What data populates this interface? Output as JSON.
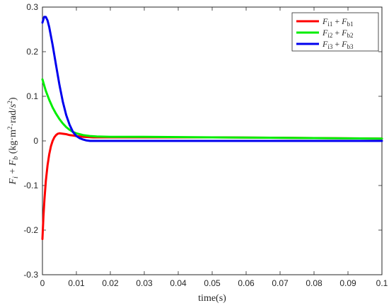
{
  "chart_data": {
    "type": "line",
    "xlabel": "time(s)",
    "ylabel": "F_i + F_b (kg·m²·rad/s²)",
    "xlim": [
      0,
      0.1
    ],
    "ylim": [
      -0.3,
      0.3
    ],
    "xticks": [
      0,
      0.01,
      0.02,
      0.03,
      0.04,
      0.05,
      0.06,
      0.07,
      0.08,
      0.09,
      0.1
    ],
    "xtick_labels": [
      "0",
      "0.01",
      "0.02",
      "0.03",
      "0.04",
      "0.05",
      "0.06",
      "0.07",
      "0.08",
      "0.09",
      "0.1"
    ],
    "yticks": [
      -0.3,
      -0.2,
      -0.1,
      0,
      0.1,
      0.2,
      0.3
    ],
    "ytick_labels": [
      "-0.3",
      "-0.2",
      "-0.1",
      "0",
      "0.1",
      "0.2",
      "0.3"
    ],
    "grid": false,
    "legend_position": "top-right",
    "series": [
      {
        "name": "Fi1 + Fb1",
        "color": "#ff0000",
        "x": [
          0,
          0.0003,
          0.0006,
          0.001,
          0.0015,
          0.002,
          0.0025,
          0.003,
          0.0035,
          0.004,
          0.0045,
          0.005,
          0.006,
          0.007,
          0.008,
          0.009,
          0.01,
          0.012,
          0.015,
          0.02,
          0.03,
          0.05,
          0.07,
          0.1
        ],
        "y": [
          -0.22,
          -0.17,
          -0.13,
          -0.09,
          -0.055,
          -0.03,
          -0.012,
          0.0,
          0.008,
          0.013,
          0.016,
          0.017,
          0.016,
          0.015,
          0.013,
          0.012,
          0.011,
          0.009,
          0.008,
          0.008,
          0.008,
          0.008,
          0.007,
          0.005
        ]
      },
      {
        "name": "Fi2 + Fb2",
        "color": "#00ee00",
        "x": [
          0,
          0.0005,
          0.001,
          0.002,
          0.003,
          0.004,
          0.005,
          0.006,
          0.007,
          0.008,
          0.009,
          0.01,
          0.012,
          0.014,
          0.016,
          0.02,
          0.03,
          0.05,
          0.07,
          0.1
        ],
        "y": [
          0.138,
          0.125,
          0.112,
          0.092,
          0.075,
          0.061,
          0.049,
          0.039,
          0.031,
          0.025,
          0.02,
          0.017,
          0.013,
          0.011,
          0.01,
          0.009,
          0.009,
          0.008,
          0.007,
          0.005
        ]
      },
      {
        "name": "Fi3 + Fb3",
        "color": "#0000ee",
        "x": [
          0,
          0.0005,
          0.001,
          0.0015,
          0.002,
          0.003,
          0.004,
          0.005,
          0.006,
          0.007,
          0.008,
          0.009,
          0.01,
          0.011,
          0.012,
          0.013,
          0.014,
          0.016,
          0.018,
          0.02,
          0.03,
          0.05,
          0.07,
          0.1
        ],
        "y": [
          0.265,
          0.278,
          0.278,
          0.27,
          0.255,
          0.215,
          0.17,
          0.126,
          0.088,
          0.058,
          0.036,
          0.02,
          0.011,
          0.006,
          0.003,
          0.001,
          0.0,
          0.0,
          0.0,
          0.0,
          0.0,
          0.0,
          0.0,
          0.0
        ]
      }
    ]
  },
  "legend": {
    "entries": [
      {
        "main1": "F",
        "sub1": "i1",
        "op": " + ",
        "main2": "F",
        "sub2": "b1"
      },
      {
        "main1": "F",
        "sub1": "i2",
        "op": " + ",
        "main2": "F",
        "sub2": "b2"
      },
      {
        "main1": "F",
        "sub1": "i3",
        "op": " + ",
        "main2": "F",
        "sub2": "b3"
      }
    ]
  },
  "ylabel_parts": {
    "f1": "F",
    "s1": "i",
    "plus": " + ",
    "f2": "F",
    "s2": "b",
    "unit_open": " (kg·m",
    "sup1": "2",
    "unit_mid": "·rad/",
    "s_unit": "s",
    "sup2": "2",
    "unit_close": ")"
  }
}
